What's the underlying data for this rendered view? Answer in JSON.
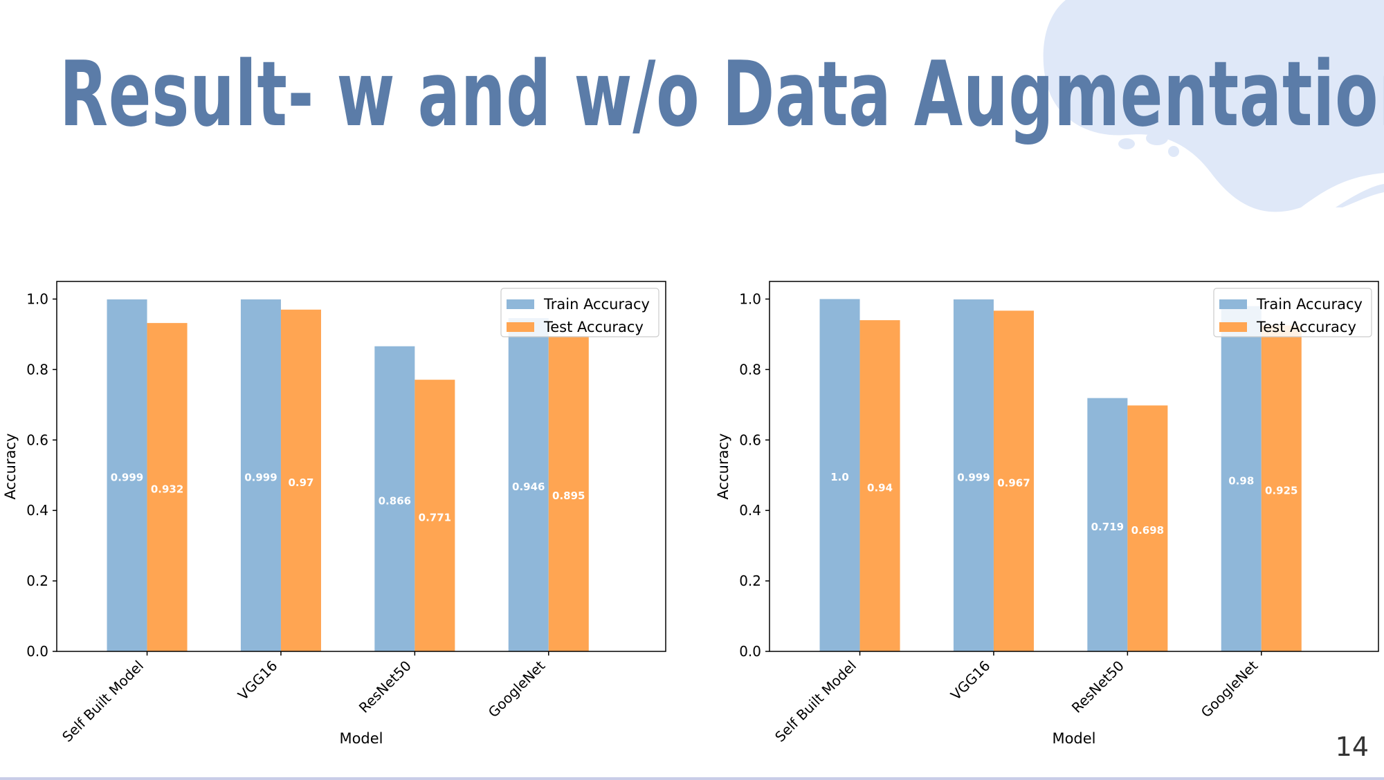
{
  "slide": {
    "title": "Result- w and w/o Data Augmentation",
    "page_number": "14",
    "colors": {
      "title": "#5b7ca8",
      "blob": "#dfe8f8",
      "train": "#8fb7d9",
      "test": "#ffa552",
      "bar_label": "#ffffff"
    }
  },
  "chart_data": [
    {
      "type": "bar",
      "categories": [
        "Self Built Model",
        "VGG16",
        "ResNet50",
        "GoogleNet"
      ],
      "series": [
        {
          "name": "Train Accuracy",
          "values": [
            0.999,
            0.999,
            0.866,
            0.946
          ],
          "labels": [
            "0.999",
            "0.999",
            "0.866",
            "0.946"
          ]
        },
        {
          "name": "Test Accuracy",
          "values": [
            0.932,
            0.97,
            0.771,
            0.895
          ],
          "labels": [
            "0.932",
            "0.97",
            "0.771",
            "0.895"
          ]
        }
      ],
      "xlabel": "Model",
      "ylabel": "Accuracy",
      "ylim": [
        0,
        1.05
      ],
      "yticks": [
        "0.0",
        "0.2",
        "0.4",
        "0.6",
        "0.8",
        "1.0"
      ],
      "legend": "top-right",
      "grid": false
    },
    {
      "type": "bar",
      "categories": [
        "Self Built Model",
        "VGG16",
        "ResNet50",
        "GoogleNet"
      ],
      "series": [
        {
          "name": "Train Accuracy",
          "values": [
            1.0,
            0.999,
            0.719,
            0.98
          ],
          "labels": [
            "1.0",
            "0.999",
            "0.719",
            "0.98"
          ]
        },
        {
          "name": "Test Accuracy",
          "values": [
            0.94,
            0.967,
            0.698,
            0.925
          ],
          "labels": [
            "0.94",
            "0.967",
            "0.698",
            "0.925"
          ]
        }
      ],
      "xlabel": "Model",
      "ylabel": "Accuracy",
      "ylim": [
        0,
        1.05
      ],
      "yticks": [
        "0.0",
        "0.2",
        "0.4",
        "0.6",
        "0.8",
        "1.0"
      ],
      "legend": "top-right",
      "grid": false
    }
  ]
}
